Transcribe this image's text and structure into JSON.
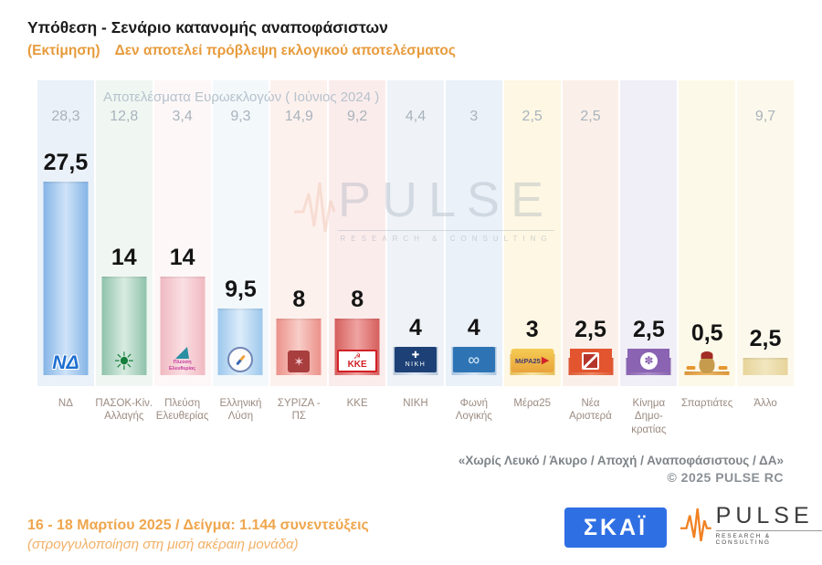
{
  "header": {
    "title": "Υπόθεση - Σενάριο κατανομής αναποφάσιστων",
    "subtitle_tag": "(Εκτίμηση)",
    "subtitle_note": "Δεν αποτελεί πρόβλεψη εκλογικού αποτελέσματος"
  },
  "euro_header": "Αποτελέσματα Ευρωεκλογών  ( Ιούνιος 2024 )",
  "watermark": {
    "text": "PULSE",
    "sub": "RESEARCH & CONSULTING"
  },
  "parties": [
    {
      "label": "ΝΔ",
      "value": 27.5,
      "value_label": "27,5",
      "euro_label": "28,3",
      "logo": "nd",
      "logo_text": "ΝΔ",
      "tint": "#eaf1f8",
      "bar_edge": "#85b4e6",
      "bar_mid": "#cfe3f8"
    },
    {
      "label": "ΠΑΣΟΚ-Κίν. Αλλαγής",
      "value": 14,
      "value_label": "14",
      "euro_label": "12,8",
      "logo": "pasok",
      "logo_text": "",
      "tint": "#f0f7f2",
      "bar_edge": "#8fc2ab",
      "bar_mid": "#d8ece1"
    },
    {
      "label": "Πλεύση Ελευθερίας",
      "value": 14,
      "value_label": "14",
      "euro_label": "3,4",
      "logo": "plefsi",
      "logo_text": "Πλεύση Ελευθερίας",
      "tint": "#fdf7f8",
      "bar_edge": "#f0b9c1",
      "bar_mid": "#fadfe3"
    },
    {
      "label": "Ελληνική Λύση",
      "value": 9.5,
      "value_label": "9,5",
      "euro_label": "9,3",
      "logo": "ellysi",
      "logo_text": "",
      "tint": "#f3f8fb",
      "bar_edge": "#9cc7ec",
      "bar_mid": "#dcedfa"
    },
    {
      "label": "ΣΥΡΙΖΑ - ΠΣ",
      "value": 8,
      "value_label": "8",
      "euro_label": "14,9",
      "logo": "syriza",
      "logo_text": "",
      "tint": "#fdf1ee",
      "bar_edge": "#eb9189",
      "bar_mid": "#f8cdc8"
    },
    {
      "label": "ΚΚΕ",
      "value": 8,
      "value_label": "8",
      "euro_label": "9,2",
      "logo": "kke",
      "logo_text": "ΚΚΕ",
      "tint": "#fbecec",
      "bar_edge": "#d55f5d",
      "bar_mid": "#efa3a1"
    },
    {
      "label": "ΝΙΚΗ",
      "value": 4,
      "value_label": "4",
      "euro_label": "4,4",
      "logo": "niki",
      "logo_text": "ΝΙΚΗ",
      "tint": "#eff3f7",
      "bar_edge": "#b7c7d8",
      "bar_mid": "#dfe9f2"
    },
    {
      "label": "Φωνή Λογικής",
      "value": 4,
      "value_label": "4",
      "euro_label": "3",
      "logo": "foni",
      "logo_text": "",
      "tint": "#ebf1f8",
      "bar_edge": "#a9c5e1",
      "bar_mid": "#d6e6f4"
    },
    {
      "label": "Μέρα25",
      "value": 3,
      "value_label": "3",
      "euro_label": "2,5",
      "logo": "mera25",
      "logo_text": "ΜέΡΑ25",
      "tint": "#fdf7e3",
      "bar_edge": "#e6be57",
      "bar_mid": "#f6e4a4"
    },
    {
      "label": "Νέα Αριστερά",
      "value": 2.5,
      "value_label": "2,5",
      "euro_label": "2,5",
      "logo": "nearist",
      "logo_text": "",
      "tint": "#fbf0e9",
      "bar_edge": "#dd5a36",
      "bar_mid": "#ee8a64"
    },
    {
      "label": "Κίνημα Δημο- κρατίας",
      "value": 2.5,
      "value_label": "2,5",
      "euro_label": "",
      "logo": "kinima",
      "logo_text": "",
      "tint": "#f0eff7",
      "bar_edge": "#8a65b1",
      "bar_mid": "#ab8dc9"
    },
    {
      "label": "Σπαρτιάτες",
      "value": 0.5,
      "value_label": "0,5",
      "euro_label": "",
      "logo": "spartiates",
      "logo_text": "",
      "tint": "#fdf9e9",
      "bar_edge": "#e09a3a",
      "bar_mid": "#eeb868"
    },
    {
      "label": "Άλλο",
      "value": 2.5,
      "value_label": "2,5",
      "euro_label": "9,7",
      "logo": "none",
      "logo_text": "",
      "tint": "#fcf9ec",
      "bar_edge": "#e7d49a",
      "bar_mid": "#f1e6bf"
    }
  ],
  "chart_data": {
    "type": "bar",
    "title": "Υπόθεση - Σενάριο κατανομής αναποφάσιστων",
    "subtitle": "(Εκτίμηση) Δεν αποτελεί πρόβλεψη εκλογικού αποτελέσματος",
    "categories": [
      "ΝΔ",
      "ΠΑΣΟΚ-Κίν. Αλλαγής",
      "Πλεύση Ελευθερίας",
      "Ελληνική Λύση",
      "ΣΥΡΙΖΑ - ΠΣ",
      "ΚΚΕ",
      "ΝΙΚΗ",
      "Φωνή Λογικής",
      "Μέρα25",
      "Νέα Αριστερά",
      "Κίνημα Δημοκρατίας",
      "Σπαρτιάτες",
      "Άλλο"
    ],
    "series": [
      {
        "name": "Εκτίμηση με κατανομή αναποφάσιστων (16-18 Μαρτίου 2025)",
        "values": [
          27.5,
          14,
          14,
          9.5,
          8,
          8,
          4,
          4,
          3,
          2.5,
          2.5,
          0.5,
          2.5
        ]
      },
      {
        "name": "Αποτελέσματα Ευρωεκλογών (Ιούνιος 2024)",
        "values": [
          28.3,
          12.8,
          3.4,
          9.3,
          14.9,
          9.2,
          4.4,
          3,
          2.5,
          2.5,
          null,
          null,
          9.7
        ]
      }
    ],
    "ylim": [
      0,
      30
    ],
    "grid": false,
    "legend_position": "none",
    "value_labels": true
  },
  "footnote": "«Χωρίς Λευκό / Άκυρο / Αποχή / Αναποφάσιστους / ΔΑ»",
  "copyright": "©  2025  PULSE RC",
  "footer": {
    "line1": "16 - 18 Μαρτίου 2025  /  Δείγμα:  1.144 συνεντεύξεις",
    "line2": "(στρογγυλοποίηση στη μισή ακέραιη μονάδα)"
  },
  "logos": {
    "skai": "ΣΚΑΪ",
    "pulse": "PULSE",
    "pulse_sub": "RESEARCH & CONSULTING"
  },
  "colors": {
    "accent_orange": "#e79b3c",
    "footer_orange": "#efa64d",
    "skai_blue": "#2f6fe4",
    "pulse_orange": "#f08124",
    "euro_text_gray": "#a9b3bc",
    "party_label_brown": "#9b8b81",
    "value_label_black": "#141414"
  }
}
